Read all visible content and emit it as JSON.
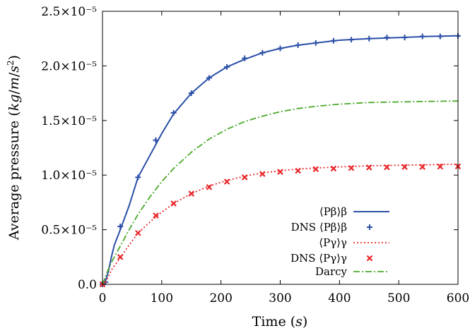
{
  "chart_data": {
    "type": "line",
    "xlabel": "Time (s)",
    "ylabel": "Average pressure (kg/m/s²)",
    "xlim": [
      0,
      600
    ],
    "ylim": [
      0,
      2.5e-05
    ],
    "x_ticks": [
      0,
      100,
      200,
      300,
      400,
      500,
      600
    ],
    "x_tick_labels": [
      "0",
      "100",
      "200",
      "300",
      "400",
      "500",
      "600"
    ],
    "y_ticks": [
      0,
      5e-06,
      1e-05,
      1.5e-05,
      2e-05,
      2.5e-05
    ],
    "y_tick_labels": [
      "0.0",
      "0.5×10⁻⁵",
      "1.0×10⁻⁵",
      "1.5×10⁻⁵",
      "2.0×10⁻⁵",
      "2.5×10⁻⁵"
    ],
    "grid": false,
    "legend_position": "lower-right",
    "series": [
      {
        "name": "⟨Pβ⟩β",
        "style": "solid",
        "color": "#2b4fa8",
        "x": [
          0,
          5,
          10,
          15,
          20,
          30,
          45,
          60,
          80,
          100,
          120,
          150,
          180,
          210,
          240,
          270,
          300,
          330,
          360,
          400,
          450,
          500,
          550,
          600
        ],
        "y": [
          0,
          3e-07,
          1.2e-06,
          2.5e-06,
          3.6e-06,
          5e-06,
          7.2e-06,
          9.8e-06,
          1.18e-05,
          1.38e-05,
          1.56e-05,
          1.75e-05,
          1.89e-05,
          1.99e-05,
          2.06e-05,
          2.12e-05,
          2.16e-05,
          2.19e-05,
          2.21e-05,
          2.235e-05,
          2.25e-05,
          2.26e-05,
          2.27e-05,
          2.275e-05
        ]
      },
      {
        "name": "DNS ⟨Pβ⟩β",
        "style": "plus",
        "color": "#2b4fa8",
        "x": [
          0,
          5,
          30,
          60,
          90,
          120,
          150,
          180,
          210,
          240,
          270,
          300,
          330,
          360,
          390,
          420,
          450,
          480,
          510,
          540,
          570,
          600
        ],
        "y": [
          0,
          2e-07,
          5.3e-06,
          9.8e-06,
          1.32e-05,
          1.57e-05,
          1.75e-05,
          1.89e-05,
          1.99e-05,
          2.07e-05,
          2.12e-05,
          2.16e-05,
          2.19e-05,
          2.21e-05,
          2.23e-05,
          2.24e-05,
          2.25e-05,
          2.26e-05,
          2.26e-05,
          2.27e-05,
          2.27e-05,
          2.275e-05
        ]
      },
      {
        "name": "⟨Pγ⟩γ",
        "style": "dotted",
        "color": "#e8262a",
        "x": [
          0,
          5,
          10,
          15,
          20,
          30,
          45,
          60,
          80,
          100,
          120,
          150,
          180,
          210,
          240,
          270,
          300,
          330,
          360,
          400,
          450,
          500,
          550,
          600
        ],
        "y": [
          0,
          2e-07,
          7e-07,
          1.3e-06,
          1.7e-06,
          2.4e-06,
          3.6e-06,
          4.7e-06,
          5.7e-06,
          6.6e-06,
          7.4e-06,
          8.3e-06,
          9e-06,
          9.5e-06,
          9.9e-06,
          1.02e-05,
          1.04e-05,
          1.055e-05,
          1.065e-05,
          1.075e-05,
          1.085e-05,
          1.09e-05,
          1.095e-05,
          1.1e-05
        ]
      },
      {
        "name": "DNS ⟨Pγ⟩γ",
        "style": "x",
        "color": "#e8262a",
        "x": [
          0,
          30,
          60,
          90,
          120,
          150,
          180,
          210,
          240,
          270,
          300,
          330,
          360,
          390,
          420,
          450,
          480,
          510,
          540,
          570,
          600
        ],
        "y": [
          0,
          2.5e-06,
          4.7e-06,
          6.3e-06,
          7.4e-06,
          8.3e-06,
          8.9e-06,
          9.4e-06,
          9.8e-06,
          1.01e-05,
          1.03e-05,
          1.04e-05,
          1.055e-05,
          1.06e-05,
          1.065e-05,
          1.07e-05,
          1.072e-05,
          1.075e-05,
          1.075e-05,
          1.078e-05,
          1.08e-05
        ]
      },
      {
        "name": "Darcy",
        "style": "dashdot",
        "color": "#4aa92a",
        "x": [
          0,
          5,
          10,
          15,
          20,
          30,
          45,
          60,
          80,
          100,
          120,
          150,
          180,
          210,
          240,
          270,
          300,
          330,
          360,
          400,
          450,
          500,
          550,
          600
        ],
        "y": [
          0,
          7e-07,
          1.4e-06,
          2e-06,
          2.5e-06,
          3.5e-06,
          5e-06,
          6.4e-06,
          8e-06,
          9.4e-06,
          1.06e-05,
          1.21e-05,
          1.33e-05,
          1.42e-05,
          1.49e-05,
          1.54e-05,
          1.58e-05,
          1.61e-05,
          1.63e-05,
          1.65e-05,
          1.665e-05,
          1.67e-05,
          1.675e-05,
          1.678e-05
        ]
      }
    ]
  }
}
